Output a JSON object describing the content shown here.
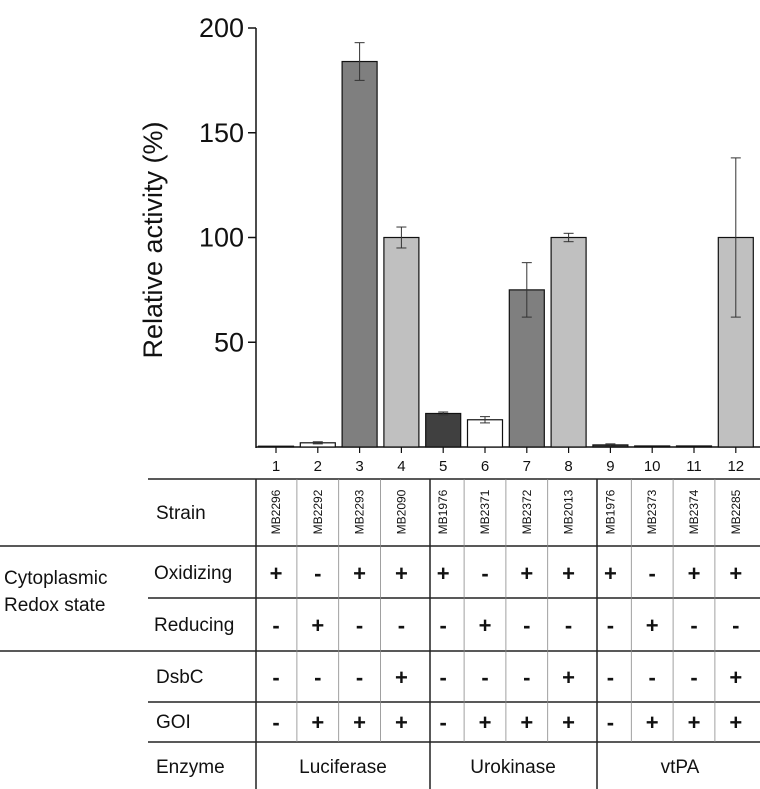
{
  "chart_data": {
    "type": "bar",
    "ylabel": "Relative activity (%)",
    "yticks": [
      50,
      100,
      150,
      200
    ],
    "ylim": [
      0,
      200
    ],
    "categories": [
      "1",
      "2",
      "3",
      "4",
      "5",
      "6",
      "7",
      "8",
      "9",
      "10",
      "11",
      "12"
    ],
    "values": [
      0,
      2,
      184,
      100,
      16,
      13,
      75,
      100,
      1,
      0.5,
      0.5,
      100
    ],
    "errors": [
      0,
      0.5,
      9,
      5,
      0.7,
      1.5,
      13,
      2,
      0.5,
      0,
      0,
      38
    ],
    "colors": [
      "#ffffff",
      "#ffffff",
      "#7f7f7f",
      "#c0c0c0",
      "#404040",
      "#ffffff",
      "#7f7f7f",
      "#c0c0c0",
      "#404040",
      "#ffffff",
      "#7f7f7f",
      "#c0c0c0"
    ]
  },
  "table": {
    "strain_label": "Strain",
    "strains": [
      "MB2296",
      "MB2292",
      "MB2293",
      "MB2090",
      "MB1976",
      "MB2371",
      "MB2372",
      "MB2013",
      "MB1976",
      "MB2373",
      "MB2374",
      "MB2285"
    ],
    "group_label_line1": "Cytoplasmic",
    "group_label_line2": "Redox state",
    "oxidizing_label": "Oxidizing",
    "oxidizing": [
      "+",
      "-",
      "+",
      "+",
      "+",
      "-",
      "+",
      "+",
      "+",
      "-",
      "+",
      "+"
    ],
    "reducing_label": "Reducing",
    "reducing": [
      "-",
      "+",
      "-",
      "-",
      "-",
      "+",
      "-",
      "-",
      "-",
      "+",
      "-",
      "-"
    ],
    "dsbc_label": "DsbC",
    "dsbc": [
      "-",
      "-",
      "-",
      "+",
      "-",
      "-",
      "-",
      "+",
      "-",
      "-",
      "-",
      "+"
    ],
    "goi_label": "GOI",
    "goi": [
      "-",
      "+",
      "+",
      "+",
      "-",
      "+",
      "+",
      "+",
      "-",
      "+",
      "+",
      "+"
    ],
    "enzyme_label": "Enzyme",
    "enzymes": [
      "Luciferase",
      "Urokinase",
      "vtPA"
    ]
  }
}
